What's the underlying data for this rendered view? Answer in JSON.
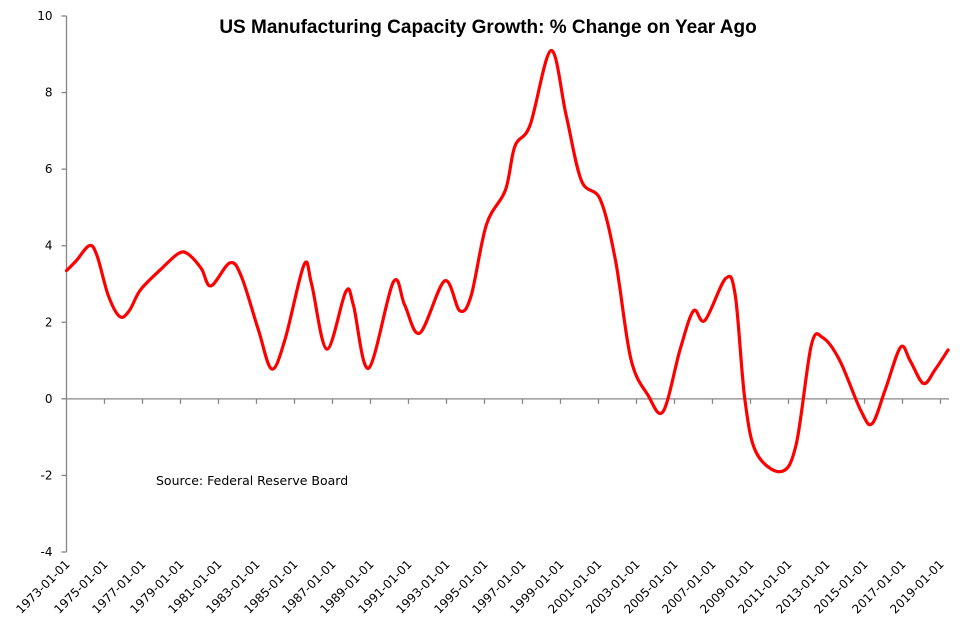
{
  "chart_data": {
    "type": "line",
    "title": "US Manufacturing Capacity Growth: % Change on Year Ago",
    "xlabel": "",
    "ylabel": "",
    "ylim": [
      -4,
      10
    ],
    "xlim": [
      1973.0,
      2019.45
    ],
    "yticks": [
      -4,
      -2,
      0,
      2,
      4,
      6,
      8,
      10
    ],
    "ytick_labels": [
      "-4",
      "-2",
      "0",
      "2",
      "4",
      "6",
      "8",
      "10"
    ],
    "xticks": [
      1973,
      1975,
      1977,
      1979,
      1981,
      1983,
      1985,
      1987,
      1989,
      1991,
      1993,
      1995,
      1997,
      1999,
      2001,
      2003,
      2005,
      2007,
      2009,
      2011,
      2013,
      2015,
      2017,
      2019
    ],
    "xtick_labels": [
      "1973-01-01",
      "1975-01-01",
      "1977-01-01",
      "1979-01-01",
      "1981-01-01",
      "1983-01-01",
      "1985-01-01",
      "1987-01-01",
      "1989-01-01",
      "1991-01-01",
      "1993-01-01",
      "1995-01-01",
      "1997-01-01",
      "1999-01-01",
      "2001-01-01",
      "2003-01-01",
      "2005-01-01",
      "2007-01-01",
      "2009-01-01",
      "2011-01-01",
      "2013-01-01",
      "2015-01-01",
      "2017-01-01",
      "2019-01-01"
    ],
    "grid": false,
    "legend": "none",
    "annotations": [
      "Source:  Federal Reserve Board"
    ],
    "series": [
      {
        "name": "% Change on Year Ago",
        "color": "#ff0000",
        "x": [
          1973.0,
          1973.5,
          1974.2,
          1974.6,
          1975.2,
          1975.8,
          1976.3,
          1976.9,
          1978.0,
          1978.9,
          1979.4,
          1980.1,
          1980.6,
          1981.6,
          1982.2,
          1983.1,
          1983.8,
          1984.5,
          1985.5,
          1985.9,
          1986.7,
          1987.7,
          1988.1,
          1988.9,
          1990.2,
          1990.8,
          1991.6,
          1992.9,
          1993.7,
          1994.3,
          1995.1,
          1996.1,
          1996.6,
          1997.4,
          1998.5,
          1999.3,
          2000.1,
          2001.1,
          2001.9,
          2002.7,
          2003.6,
          2004.4,
          2005.3,
          2006.0,
          2006.6,
          2007.7,
          2008.2,
          2008.7,
          2009.3,
          2010.6,
          2011.4,
          2012.2,
          2012.8,
          2013.7,
          2014.8,
          2015.4,
          2016.1,
          2016.9,
          2017.4,
          2018.1,
          2018.7,
          2019.4
        ],
        "values": [
          3.35,
          3.6,
          4.0,
          3.75,
          2.7,
          2.15,
          2.3,
          2.85,
          3.4,
          3.8,
          3.78,
          3.4,
          2.95,
          3.55,
          3.2,
          1.8,
          0.78,
          1.55,
          3.5,
          3.0,
          1.3,
          2.8,
          2.45,
          0.8,
          3.05,
          2.45,
          1.72,
          3.08,
          2.3,
          2.7,
          4.55,
          5.45,
          6.6,
          7.15,
          9.1,
          7.4,
          5.7,
          5.2,
          3.6,
          1.05,
          0.1,
          -0.33,
          1.3,
          2.3,
          2.05,
          3.15,
          2.7,
          0.0,
          -1.4,
          -1.9,
          -1.2,
          1.4,
          1.6,
          1.0,
          -0.3,
          -0.65,
          0.25,
          1.35,
          1.0,
          0.4,
          0.75,
          1.28
        ]
      }
    ]
  }
}
